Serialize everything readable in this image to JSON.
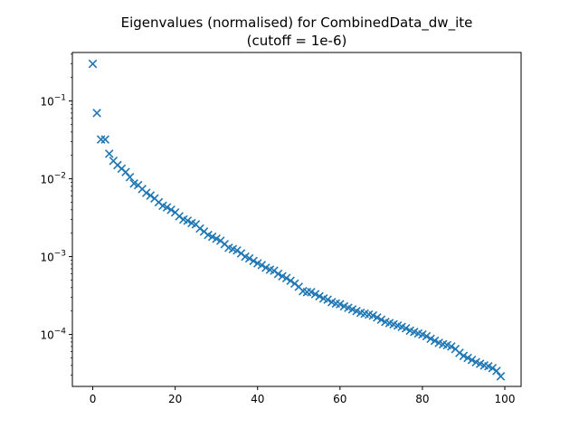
{
  "chart_data": {
    "type": "scatter",
    "title_line1": "Eigenvalues (normalised) for CombinedData_dw_ite",
    "title_line2": "(cutoff = 1e-6)",
    "xlabel": "",
    "ylabel": "",
    "yscale": "log",
    "xlim": [
      -4.95,
      103.95
    ],
    "ylim": [
      2.15e-05,
      0.42
    ],
    "grid": false,
    "marker": "x",
    "series_color": "#1f77b4",
    "x_ticks": [
      "0",
      "20",
      "40",
      "60",
      "80",
      "100"
    ],
    "x_tick_values": [
      0,
      20,
      40,
      60,
      80,
      100
    ],
    "y_ticks": [
      {
        "base": "10",
        "exp": "−1",
        "value": 0.1
      },
      {
        "base": "10",
        "exp": "−2",
        "value": 0.01
      },
      {
        "base": "10",
        "exp": "−3",
        "value": 0.001
      },
      {
        "base": "10",
        "exp": "−4",
        "value": 0.0001
      }
    ],
    "series": [
      {
        "x": [
          0,
          1,
          2,
          3,
          4,
          5,
          6,
          7,
          8,
          9,
          10,
          11,
          12,
          13,
          14,
          15,
          16,
          17,
          18,
          19,
          20,
          21,
          22,
          23,
          24,
          25,
          26,
          27,
          28,
          29,
          30,
          31,
          32,
          33,
          34,
          35,
          36,
          37,
          38,
          39,
          40,
          41,
          42,
          43,
          44,
          45,
          46,
          47,
          48,
          49,
          50,
          51,
          52,
          53,
          54,
          55,
          56,
          57,
          58,
          59,
          60,
          61,
          62,
          63,
          64,
          65,
          66,
          67,
          68,
          69,
          70,
          71,
          72,
          73,
          74,
          75,
          76,
          77,
          78,
          79,
          80,
          81,
          82,
          83,
          84,
          85,
          86,
          87,
          88,
          89,
          90,
          91,
          92,
          93,
          94,
          95,
          96,
          97,
          98,
          99
        ],
        "y": [
          0.3,
          0.07,
          0.032,
          0.032,
          0.021,
          0.017,
          0.015,
          0.0135,
          0.0122,
          0.0105,
          0.0087,
          0.0083,
          0.0074,
          0.0066,
          0.0061,
          0.0056,
          0.005,
          0.0045,
          0.0043,
          0.004,
          0.0037,
          0.0033,
          0.003,
          0.0029,
          0.0027,
          0.0026,
          0.0023,
          0.0021,
          0.0019,
          0.0018,
          0.0017,
          0.0016,
          0.00145,
          0.0013,
          0.00125,
          0.0012,
          0.0011,
          0.001,
          0.00095,
          0.00088,
          0.00082,
          0.00078,
          0.00072,
          0.00068,
          0.00066,
          0.0006,
          0.00056,
          0.00053,
          0.00049,
          0.00045,
          0.00041,
          0.00036,
          0.00035,
          0.00035,
          0.00033,
          0.00031,
          0.00029,
          0.00028,
          0.00026,
          0.00025,
          0.000245,
          0.00023,
          0.00022,
          0.00021,
          0.0002,
          0.00019,
          0.000185,
          0.00018,
          0.000175,
          0.000165,
          0.000155,
          0.000145,
          0.00014,
          0.000135,
          0.00013,
          0.000125,
          0.00012,
          0.000112,
          0.000108,
          0.000103,
          0.0001,
          9.5e-05,
          8.8e-05,
          8.3e-05,
          7.8e-05,
          7.5e-05,
          7.3e-05,
          7e-05,
          6.5e-05,
          5.8e-05,
          5.3e-05,
          5e-05,
          4.7e-05,
          4.4e-05,
          4.2e-05,
          4e-05,
          3.9e-05,
          3.7e-05,
          3.4e-05,
          2.9e-05
        ]
      }
    ]
  }
}
